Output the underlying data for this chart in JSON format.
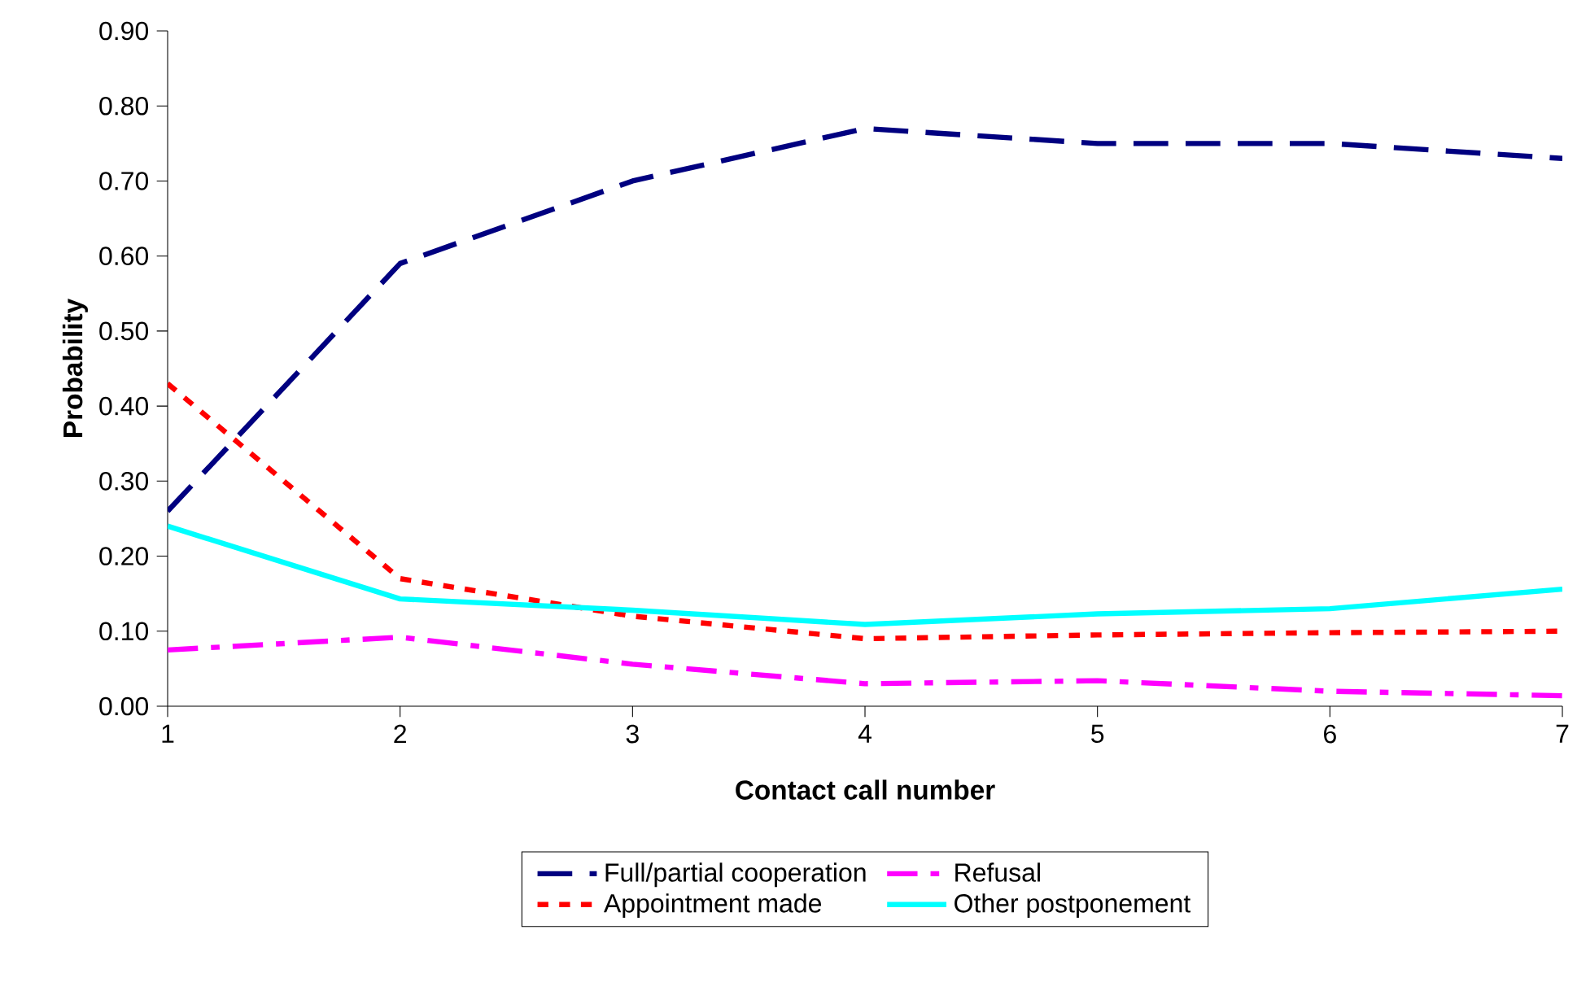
{
  "chart_data": {
    "type": "line",
    "xlabel": "Contact call number",
    "ylabel": "Probability",
    "x": [
      1,
      2,
      3,
      4,
      5,
      6,
      7
    ],
    "xlim": [
      1,
      7
    ],
    "xticks": [
      1,
      2,
      3,
      4,
      5,
      6,
      7
    ],
    "ylim": [
      0,
      0.9
    ],
    "yticks": [
      {
        "value": 0,
        "label": "0.00"
      },
      {
        "value": 0.1,
        "label": "0.10"
      },
      {
        "value": 0.2,
        "label": "0.20"
      },
      {
        "value": 0.3,
        "label": "0.30"
      },
      {
        "value": 0.4,
        "label": "0.40"
      },
      {
        "value": 0.5,
        "label": "0.50"
      },
      {
        "value": 0.6,
        "label": "0.60"
      },
      {
        "value": 0.7,
        "label": "0.70"
      },
      {
        "value": 0.8,
        "label": "0.80"
      },
      {
        "value": 0.9,
        "label": "0.90"
      }
    ],
    "grid": false,
    "legend": "bottom",
    "marker": "none",
    "series": [
      {
        "name": "Full/partial cooperation",
        "color": "#000080",
        "line_style": "dashed",
        "values": [
          0.26,
          0.59,
          0.7,
          0.77,
          0.75,
          0.75,
          0.73
        ]
      },
      {
        "name": "Refusal",
        "color": "#ff00ff",
        "line_style": "dashdot",
        "values": [
          0.075,
          0.092,
          0.056,
          0.03,
          0.034,
          0.02,
          0.014
        ]
      },
      {
        "name": "Appointment made",
        "color": "#ff0000",
        "line_style": "dotted",
        "values": [
          0.43,
          0.17,
          0.12,
          0.09,
          0.095,
          0.098,
          0.1
        ]
      },
      {
        "name": "Other postponement",
        "color": "#00ffff",
        "line_style": "solid",
        "values": [
          0.24,
          0.143,
          0.128,
          0.109,
          0.123,
          0.13,
          0.156
        ]
      }
    ]
  }
}
